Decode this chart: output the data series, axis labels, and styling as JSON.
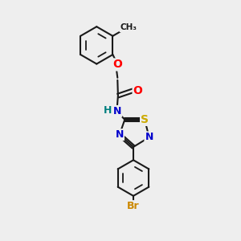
{
  "background_color": "#eeeeee",
  "bond_color": "#1a1a1a",
  "atom_colors": {
    "O": "#ff0000",
    "N": "#0000cc",
    "S": "#ccaa00",
    "Br": "#cc8800",
    "H": "#008080",
    "C": "#1a1a1a"
  },
  "figsize": [
    3.0,
    3.0
  ],
  "dpi": 100
}
